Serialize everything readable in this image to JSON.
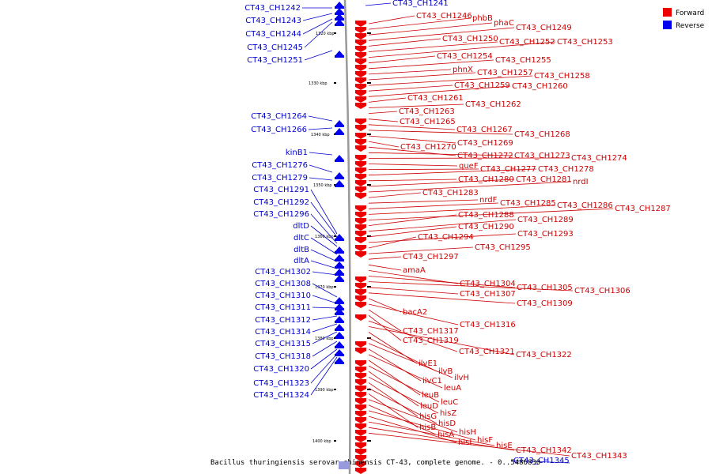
{
  "colors": {
    "forward": "#ee0000",
    "reverse": "#0000ee",
    "forward_text": "#cc0000",
    "reverse_text": "#0000cc",
    "backbone": "#999999"
  },
  "legend": {
    "forward": "Forward",
    "reverse": "Reverse"
  },
  "caption": {
    "text": "Bacillus thuringiensis serovar chinensis CT-43, complete genome. - 0..5486830"
  },
  "ruler": [
    "1320 kbp",
    "1330 kbp",
    "1340 kbp",
    "1350 kbp",
    "1360 kbp",
    "1370 kbp",
    "1380 kbp",
    "1390 kbp",
    "1400 kbp"
  ],
  "reverse_genes": [
    "CT43_CH1241",
    "CT43_CH1242",
    "CT43_CH1243",
    "CT43_CH1244",
    "CT43_CH1245",
    "CT43_CH1251",
    "CT43_CH1264",
    "CT43_CH1266",
    "kinB1",
    "CT43_CH1276",
    "CT43_CH1279",
    "CT43_CH1291",
    "CT43_CH1292",
    "CT43_CH1296",
    "dltD",
    "dltC",
    "dltB",
    "dltA",
    "CT43_CH1302",
    "CT43_CH1308",
    "CT43_CH1310",
    "CT43_CH1311",
    "CT43_CH1312",
    "CT43_CH1314",
    "CT43_CH1315",
    "CT43_CH1318",
    "CT43_CH1320",
    "CT43_CH1323",
    "CT43_CH1324",
    "CT43_CH1345"
  ],
  "forward_genes": [
    "CT43_CH1246",
    "phbB",
    "phaC",
    "CT43_CH1249",
    "CT43_CH1250",
    "CT43_CH1252",
    "CT43_CH1253",
    "CT43_CH1254",
    "CT43_CH1255",
    "phnX",
    "CT43_CH1257",
    "CT43_CH1258",
    "CT43_CH1259",
    "CT43_CH1260",
    "CT43_CH1261",
    "CT43_CH1262",
    "CT43_CH1263",
    "CT43_CH1265",
    "CT43_CH1267",
    "CT43_CH1268",
    "CT43_CH1269",
    "CT43_CH1270",
    "CT43_CH1272",
    "CT43_CH1273",
    "CT43_CH1274",
    "queF",
    "CT43_CH1277",
    "CT43_CH1278",
    "CT43_CH1280",
    "CT43_CH1281",
    "nrdI",
    "CT43_CH1283",
    "nrdF",
    "CT43_CH1285",
    "CT43_CH1286",
    "CT43_CH1287",
    "CT43_CH1288",
    "CT43_CH1289",
    "CT43_CH1290",
    "CT43_CH1293",
    "CT43_CH1294",
    "CT43_CH1295",
    "CT43_CH1297",
    "amaA",
    "CT43_CH1304",
    "CT43_CH1305",
    "CT43_CH1306",
    "CT43_CH1307",
    "CT43_CH1309",
    "bacA2",
    "CT43_CH1316",
    "CT43_CH1317",
    "CT43_CH1319",
    "CT43_CH1321",
    "CT43_CH1322",
    "ilvE1",
    "ilvB",
    "ilvH",
    "ilvC1",
    "leuA",
    "leuB",
    "leuC",
    "leuD",
    "hisZ",
    "hisG",
    "hisD",
    "hisB",
    "hisH",
    "hisA",
    "hisF",
    "hisI",
    "hisE",
    "CT43_CH1342",
    "CT43_CH1343"
  ]
}
